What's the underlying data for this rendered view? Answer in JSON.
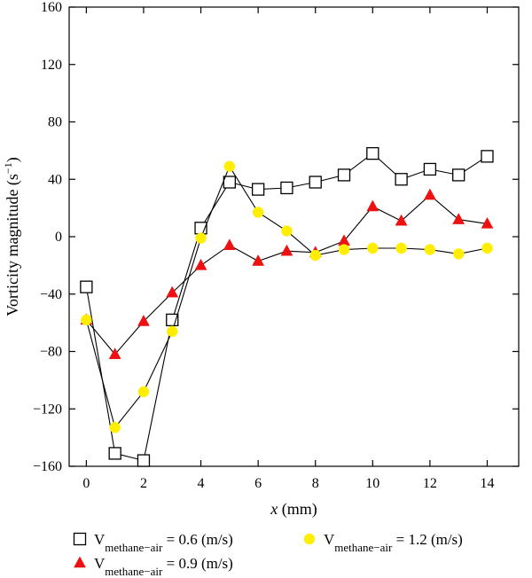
{
  "chart_data": {
    "type": "line",
    "xlabel": {
      "italic": "x",
      "rest": " (mm)"
    },
    "ylabel": {
      "main": "Vorticity magnitude (s",
      "sup": "−1",
      "close": ")"
    },
    "xlim": [
      -0.6,
      15.1
    ],
    "ylim": [
      -160,
      160
    ],
    "xticks": [
      0,
      2,
      4,
      6,
      8,
      10,
      12,
      14
    ],
    "yticks": [
      -160,
      -120,
      -80,
      -40,
      0,
      40,
      80,
      120,
      160
    ],
    "grid": false,
    "legend_position": "bottom",
    "series": [
      {
        "legend": {
          "main": "V",
          "sub": "methane−air",
          "rest": " = 0.6 (m/s)"
        },
        "marker": "square",
        "color": "#ffffff",
        "stroke": "#000000",
        "x": [
          0,
          1,
          2,
          3,
          4,
          5,
          6,
          7,
          8,
          9,
          10,
          11,
          12,
          13,
          14
        ],
        "y": [
          -35,
          -151,
          -156,
          -58,
          6,
          38,
          33,
          34,
          38,
          43,
          58,
          40,
          47,
          43,
          56
        ]
      },
      {
        "legend": {
          "main": "V",
          "sub": "methane−air",
          "rest": " = 0.9 (m/s)"
        },
        "marker": "triangle",
        "color": "#ee1111",
        "stroke": "#ee1111",
        "x": [
          0,
          1,
          2,
          3,
          4,
          5,
          6,
          7,
          8,
          9,
          10,
          11,
          12,
          13,
          14
        ],
        "y": [
          -58,
          -82,
          -59,
          -39,
          -20,
          -6,
          -17,
          -10,
          -11,
          -3,
          21,
          11,
          29,
          12,
          9
        ]
      },
      {
        "legend": {
          "main": "V",
          "sub": "methane−air",
          "rest": " = 1.2 (m/s)"
        },
        "marker": "circle",
        "color": "#ffee00",
        "stroke": "#ffee00",
        "x": [
          0,
          1,
          2,
          3,
          4,
          5,
          6,
          7,
          8,
          9,
          10,
          11,
          12,
          13,
          14
        ],
        "y": [
          -58,
          -133,
          -108,
          -66,
          -1,
          49,
          17,
          4,
          -13,
          -9,
          -8,
          -8,
          -9,
          -12,
          -8
        ]
      }
    ]
  }
}
